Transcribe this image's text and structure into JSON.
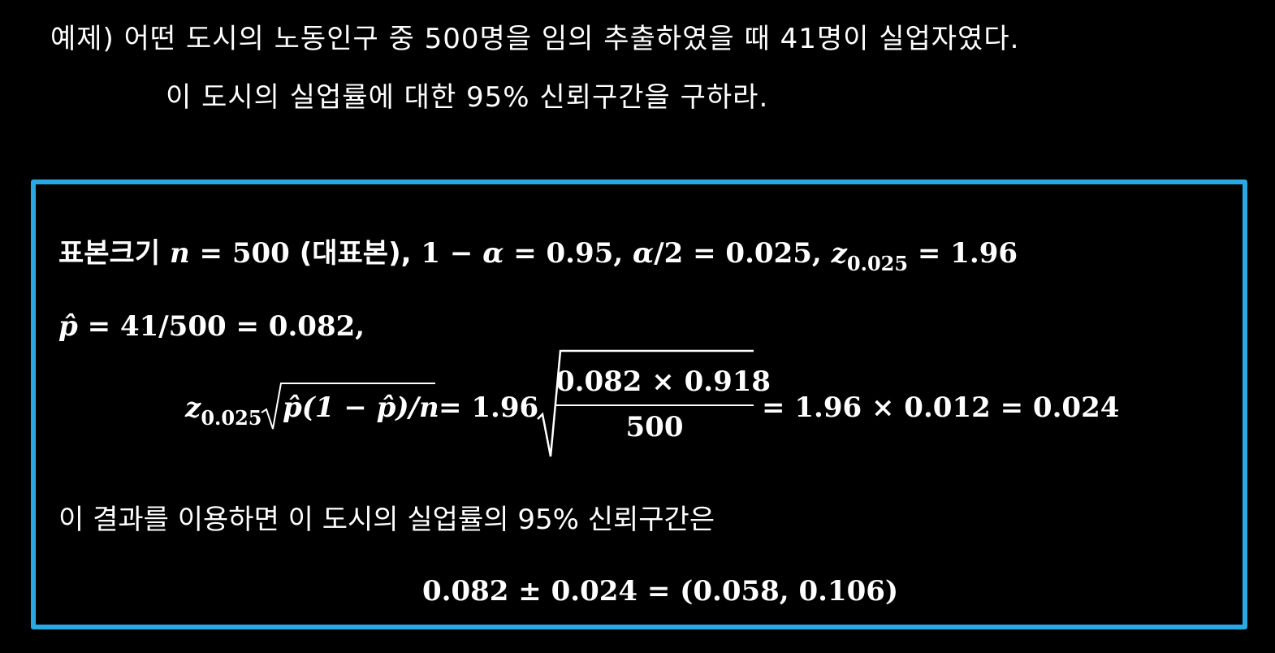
{
  "problem": {
    "line1": "예제) 어떤 도시의 노동인구 중 500명을 임의 추출하였을 때 41명이 실업자였다.",
    "line2": "이 도시의 실업률에 대한 95% 신뢰구간을 구하라."
  },
  "solution": {
    "line1": {
      "label": "표본크기",
      "n": "n",
      "eq_n": " = 500 ",
      "paren": "(대표본),",
      "one_minus": " 1 − ",
      "alpha": "α",
      "eq_conf": " = 0.95, ",
      "alpha2": "α",
      "half": "/2 = 0.025, ",
      "z": "z",
      "z_sub": "0.025",
      "eq_z": " = 1.96"
    },
    "line2": {
      "phat": "p̂",
      "rest": " = 41/500 = 0.082,"
    },
    "line3": {
      "z": "z",
      "z_sub": "0.025",
      "sqrt_content": "p̂(1 − p̂)/n",
      "eq_196": "= 1.96",
      "numerator": "0.082 × 0.918",
      "denominator": "500",
      "result": "= 1.96 × 0.012 = 0.024"
    },
    "line4": "이 결과를 이용하면 이 도시의 실업률의 95% 신뢰구간은",
    "line5": "0.082 ± 0.024 = (0.058, 0.106)"
  },
  "colors": {
    "background": "#000000",
    "text": "#ffffff",
    "box_border": "#29a8e6"
  }
}
